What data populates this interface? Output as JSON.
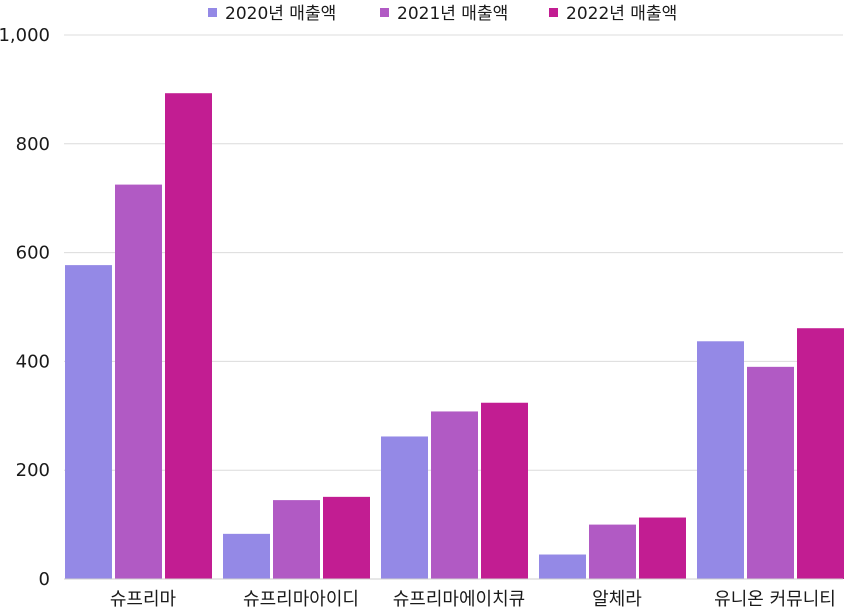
{
  "chart_data": {
    "type": "bar",
    "categories": [
      "슈프리마",
      "슈프리마아이디",
      "슈프리마에이치큐",
      "알체라",
      "유니온 커뮤니티"
    ],
    "series": [
      {
        "name": "2020년 매출액",
        "color": "#9489E6",
        "values": [
          577,
          83,
          262,
          45,
          437
        ]
      },
      {
        "name": "2021년 매출액",
        "color": "#B15AC4",
        "values": [
          725,
          145,
          308,
          100,
          390
        ]
      },
      {
        "name": "2022년 매출액",
        "color": "#C21D92",
        "values": [
          893,
          151,
          324,
          113,
          461
        ]
      }
    ],
    "ylim": [
      0,
      1000
    ],
    "yticks": [
      0,
      200,
      400,
      600,
      800,
      1000
    ],
    "ytick_labels": [
      "0",
      "200",
      "400",
      "600",
      "800",
      "1,000"
    ],
    "grid": true,
    "legend_position": "top-center"
  }
}
